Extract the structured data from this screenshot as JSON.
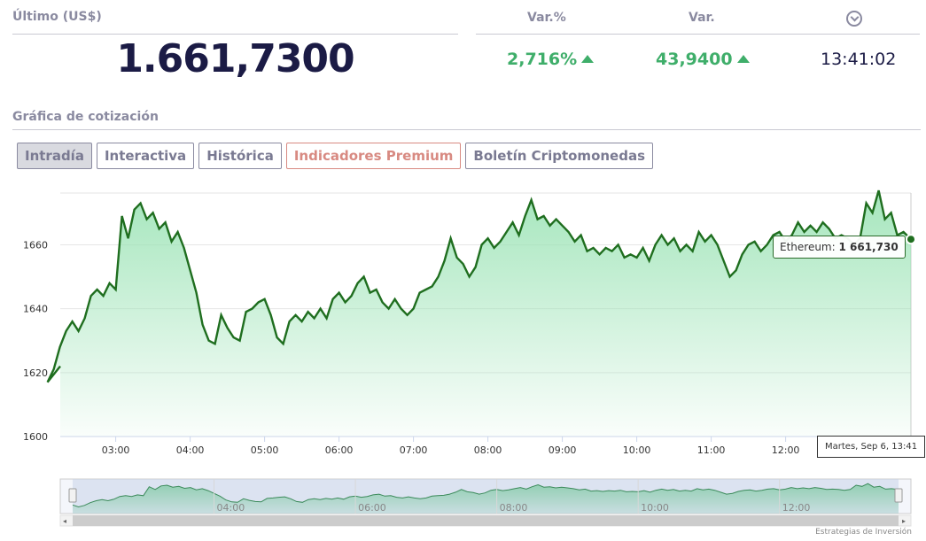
{
  "quote": {
    "last_label": "Último (US$)",
    "last_value": "1.661,7300",
    "change_pct_label": "Var.%",
    "change_pct": "2,716%",
    "change_label": "Var.",
    "change": "43,9400",
    "time": "13:41:02",
    "clock_icon": "clock-icon",
    "up_color": "#3fae6a"
  },
  "section_title": "Gráfica de cotización",
  "tabs": [
    {
      "label": "Intradía",
      "active": true
    },
    {
      "label": "Interactiva"
    },
    {
      "label": "Histórica"
    },
    {
      "label": "Indicadores Premium"
    },
    {
      "label": "Boletín Criptomonedas"
    }
  ],
  "tooltip": {
    "series_label": "Ethereum: ",
    "value": "1 661,730",
    "date": "Martes, Sep 6, 13:41"
  },
  "credits": "Estrategias de Inversión",
  "chart_data": {
    "type": "area",
    "series_name": "Ethereum",
    "line_color": "#1f6e1f",
    "fill_color": "#9be3b5",
    "ylim": [
      1600,
      1680
    ],
    "yticks": [
      1600,
      1620,
      1640,
      1660
    ],
    "x_start": "02:00",
    "x_end": "13:41",
    "xticks": [
      "03:00",
      "04:00",
      "05:00",
      "06:00",
      "07:00",
      "08:00",
      "09:00",
      "10:00",
      "11:00",
      "12:00"
    ],
    "navigator_ticks": [
      "04:00",
      "06:00",
      "08:00",
      "10:00",
      "12:00"
    ],
    "points": [
      [
        "02:00",
        1622
      ],
      [
        "02:05",
        1617
      ],
      [
        "02:10",
        1621
      ],
      [
        "02:15",
        1628
      ],
      [
        "02:20",
        1633
      ],
      [
        "02:25",
        1636
      ],
      [
        "02:30",
        1633
      ],
      [
        "02:35",
        1637
      ],
      [
        "02:40",
        1644
      ],
      [
        "02:45",
        1646
      ],
      [
        "02:50",
        1644
      ],
      [
        "02:55",
        1648
      ],
      [
        "03:00",
        1646
      ],
      [
        "03:05",
        1669
      ],
      [
        "03:10",
        1662
      ],
      [
        "03:15",
        1671
      ],
      [
        "03:20",
        1673
      ],
      [
        "03:25",
        1668
      ],
      [
        "03:30",
        1670
      ],
      [
        "03:35",
        1665
      ],
      [
        "03:40",
        1667
      ],
      [
        "03:45",
        1661
      ],
      [
        "03:50",
        1664
      ],
      [
        "03:55",
        1659
      ],
      [
        "04:00",
        1652
      ],
      [
        "04:05",
        1645
      ],
      [
        "04:10",
        1635
      ],
      [
        "04:15",
        1630
      ],
      [
        "04:20",
        1629
      ],
      [
        "04:25",
        1638
      ],
      [
        "04:30",
        1634
      ],
      [
        "04:35",
        1631
      ],
      [
        "04:40",
        1630
      ],
      [
        "04:45",
        1639
      ],
      [
        "04:50",
        1640
      ],
      [
        "04:55",
        1642
      ],
      [
        "05:00",
        1643
      ],
      [
        "05:05",
        1638
      ],
      [
        "05:10",
        1631
      ],
      [
        "05:15",
        1629
      ],
      [
        "05:20",
        1636
      ],
      [
        "05:25",
        1638
      ],
      [
        "05:30",
        1636
      ],
      [
        "05:35",
        1639
      ],
      [
        "05:40",
        1637
      ],
      [
        "05:45",
        1640
      ],
      [
        "05:50",
        1637
      ],
      [
        "05:55",
        1643
      ],
      [
        "06:00",
        1645
      ],
      [
        "06:05",
        1642
      ],
      [
        "06:10",
        1644
      ],
      [
        "06:15",
        1648
      ],
      [
        "06:20",
        1650
      ],
      [
        "06:25",
        1645
      ],
      [
        "06:30",
        1646
      ],
      [
        "06:35",
        1642
      ],
      [
        "06:40",
        1640
      ],
      [
        "06:45",
        1643
      ],
      [
        "06:50",
        1640
      ],
      [
        "06:55",
        1638
      ],
      [
        "07:00",
        1640
      ],
      [
        "07:05",
        1645
      ],
      [
        "07:10",
        1646
      ],
      [
        "07:15",
        1647
      ],
      [
        "07:20",
        1650
      ],
      [
        "07:25",
        1655
      ],
      [
        "07:30",
        1662
      ],
      [
        "07:35",
        1656
      ],
      [
        "07:40",
        1654
      ],
      [
        "07:45",
        1650
      ],
      [
        "07:50",
        1653
      ],
      [
        "07:55",
        1660
      ],
      [
        "08:00",
        1662
      ],
      [
        "08:05",
        1659
      ],
      [
        "08:10",
        1661
      ],
      [
        "08:15",
        1664
      ],
      [
        "08:20",
        1667
      ],
      [
        "08:25",
        1663
      ],
      [
        "08:30",
        1669
      ],
      [
        "08:35",
        1674
      ],
      [
        "08:40",
        1668
      ],
      [
        "08:45",
        1669
      ],
      [
        "08:50",
        1666
      ],
      [
        "08:55",
        1668
      ],
      [
        "09:00",
        1666
      ],
      [
        "09:05",
        1664
      ],
      [
        "09:10",
        1661
      ],
      [
        "09:15",
        1663
      ],
      [
        "09:20",
        1658
      ],
      [
        "09:25",
        1659
      ],
      [
        "09:30",
        1657
      ],
      [
        "09:35",
        1659
      ],
      [
        "09:40",
        1658
      ],
      [
        "09:45",
        1660
      ],
      [
        "09:50",
        1656
      ],
      [
        "09:55",
        1657
      ],
      [
        "10:00",
        1656
      ],
      [
        "10:05",
        1659
      ],
      [
        "10:10",
        1655
      ],
      [
        "10:15",
        1660
      ],
      [
        "10:20",
        1663
      ],
      [
        "10:25",
        1660
      ],
      [
        "10:30",
        1662
      ],
      [
        "10:35",
        1658
      ],
      [
        "10:40",
        1660
      ],
      [
        "10:45",
        1658
      ],
      [
        "10:50",
        1664
      ],
      [
        "10:55",
        1661
      ],
      [
        "11:00",
        1663
      ],
      [
        "11:05",
        1660
      ],
      [
        "11:10",
        1655
      ],
      [
        "11:15",
        1650
      ],
      [
        "11:20",
        1652
      ],
      [
        "11:25",
        1657
      ],
      [
        "11:30",
        1660
      ],
      [
        "11:35",
        1661
      ],
      [
        "11:40",
        1658
      ],
      [
        "11:45",
        1660
      ],
      [
        "11:50",
        1663
      ],
      [
        "11:55",
        1664
      ],
      [
        "12:00",
        1661
      ],
      [
        "12:05",
        1663
      ],
      [
        "12:10",
        1667
      ],
      [
        "12:15",
        1664
      ],
      [
        "12:20",
        1666
      ],
      [
        "12:25",
        1664
      ],
      [
        "12:30",
        1667
      ],
      [
        "12:35",
        1665
      ],
      [
        "12:40",
        1662
      ],
      [
        "12:45",
        1663
      ],
      [
        "12:50",
        1662
      ],
      [
        "12:55",
        1660
      ],
      [
        "13:00",
        1662
      ],
      [
        "13:05",
        1673
      ],
      [
        "13:10",
        1670
      ],
      [
        "13:15",
        1677
      ],
      [
        "13:20",
        1668
      ],
      [
        "13:25",
        1670
      ],
      [
        "13:30",
        1663
      ],
      [
        "13:35",
        1664
      ],
      [
        "13:41",
        1661.73
      ]
    ]
  }
}
